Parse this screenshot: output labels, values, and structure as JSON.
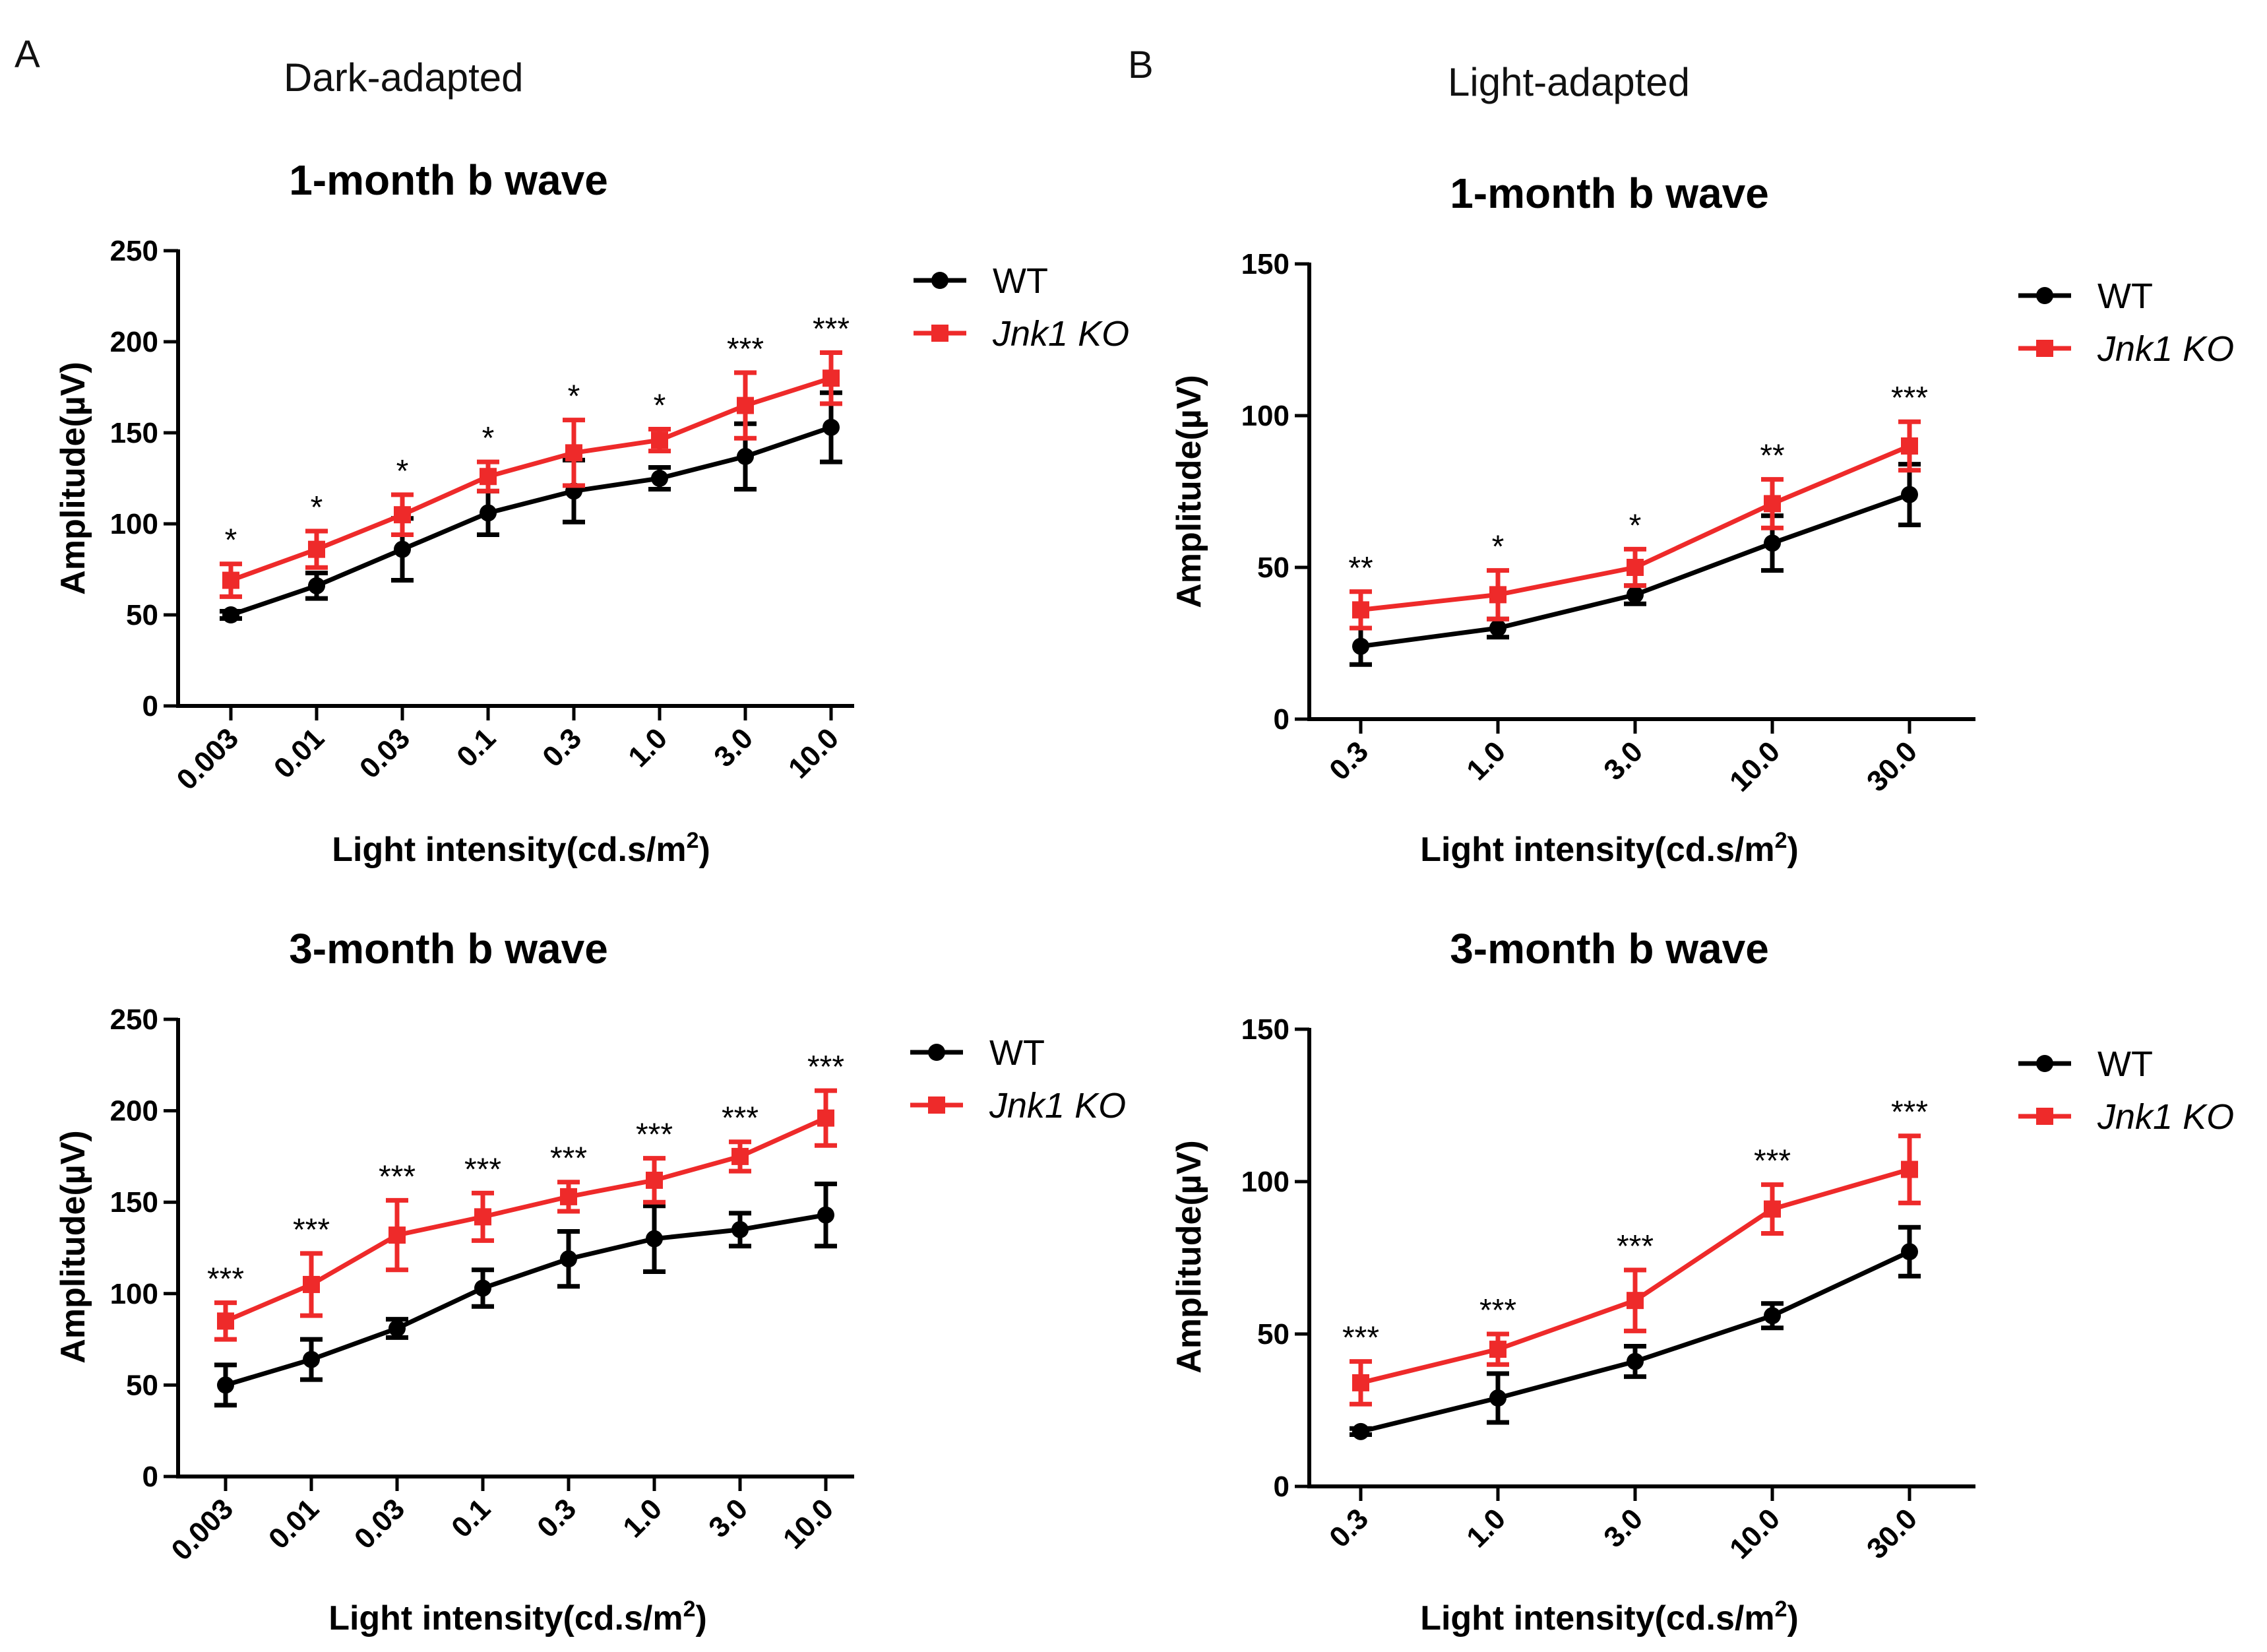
{
  "panels": [
    {
      "letter": "A",
      "section_title": "Dark-adapted"
    },
    {
      "letter": "B",
      "section_title": "Light-adapted"
    }
  ],
  "colors": {
    "wt": "#000000",
    "ko": "#ee2a2a",
    "axis": "#000000"
  },
  "legend": {
    "wt_label": "WT",
    "ko_label": "Jnk1 KO"
  },
  "chart_data": [
    {
      "id": "dark_1m",
      "type": "line",
      "title": "1-month b wave",
      "xlabel": "Light intensity(cd.s/m",
      "xlabel_sup": "2",
      "xlabel_tail": ")",
      "ylabel": "Amplitude(µV)",
      "categories": [
        "0.003",
        "0.01",
        "0.03",
        "0.1",
        "0.3",
        "1.0",
        "3.0",
        "10.0"
      ],
      "ylim": [
        0,
        250
      ],
      "yticks": [
        0,
        50,
        100,
        150,
        200,
        250
      ],
      "legend_position": "top-right",
      "series": [
        {
          "name": "WT",
          "values": [
            50,
            66,
            86,
            106,
            118,
            125,
            137,
            153
          ],
          "errors": [
            2,
            7,
            17,
            12,
            17,
            6,
            18,
            19
          ]
        },
        {
          "name": "Jnk1 KO",
          "values": [
            69,
            86,
            105,
            126,
            139,
            146,
            165,
            180
          ],
          "errors": [
            9,
            10,
            11,
            8,
            18,
            6,
            18,
            14
          ]
        }
      ],
      "significance": [
        "*",
        "*",
        "*",
        "*",
        "*",
        "*",
        "***",
        "***"
      ]
    },
    {
      "id": "light_1m",
      "type": "line",
      "title": "1-month b wave",
      "xlabel": "Light intensity(cd.s/m",
      "xlabel_sup": "2",
      "xlabel_tail": ")",
      "ylabel": "Amplitude(µV)",
      "categories": [
        "0.3",
        "1.0",
        "3.0",
        "10.0",
        "30.0"
      ],
      "ylim": [
        0,
        150
      ],
      "yticks": [
        0,
        50,
        100,
        150
      ],
      "legend_position": "top-right",
      "series": [
        {
          "name": "WT",
          "values": [
            24,
            30,
            41,
            58,
            74
          ],
          "errors": [
            6,
            3,
            3,
            9,
            10
          ]
        },
        {
          "name": "Jnk1 KO",
          "values": [
            36,
            41,
            50,
            71,
            90
          ],
          "errors": [
            6,
            8,
            6,
            8,
            8
          ]
        }
      ],
      "significance": [
        "**",
        "*",
        "*",
        "**",
        "***"
      ]
    },
    {
      "id": "dark_3m",
      "type": "line",
      "title": "3-month b wave",
      "xlabel": "Light intensity(cd.s/m",
      "xlabel_sup": "2",
      "xlabel_tail": ")",
      "ylabel": "Amplitude(µV)",
      "categories": [
        "0.003",
        "0.01",
        "0.03",
        "0.1",
        "0.3",
        "1.0",
        "3.0",
        "10.0"
      ],
      "ylim": [
        0,
        250
      ],
      "yticks": [
        0,
        50,
        100,
        150,
        200,
        250
      ],
      "legend_position": "top-right",
      "series": [
        {
          "name": "WT",
          "values": [
            50,
            64,
            81,
            103,
            119,
            130,
            135,
            143
          ],
          "errors": [
            11,
            11,
            5,
            10,
            15,
            18,
            9,
            17
          ]
        },
        {
          "name": "Jnk1 KO",
          "values": [
            85,
            105,
            132,
            142,
            153,
            162,
            175,
            196
          ],
          "errors": [
            10,
            17,
            19,
            13,
            8,
            12,
            8,
            15
          ]
        }
      ],
      "significance": [
        "***",
        "***",
        "***",
        "***",
        "***",
        "***",
        "***",
        "***"
      ]
    },
    {
      "id": "light_3m",
      "type": "line",
      "title": "3-month b wave",
      "xlabel": "Light intensity(cd.s/m",
      "xlabel_sup": "2",
      "xlabel_tail": ")",
      "ylabel": "Amplitude(µV)",
      "categories": [
        "0.3",
        "1.0",
        "3.0",
        "10.0",
        "30.0"
      ],
      "ylim": [
        0,
        150
      ],
      "yticks": [
        0,
        50,
        100,
        150
      ],
      "legend_position": "top-right",
      "series": [
        {
          "name": "WT",
          "values": [
            18,
            29,
            41,
            56,
            77
          ],
          "errors": [
            1,
            8,
            5,
            4,
            8
          ]
        },
        {
          "name": "Jnk1 KO",
          "values": [
            34,
            45,
            61,
            91,
            104
          ],
          "errors": [
            7,
            5,
            10,
            8,
            11
          ]
        }
      ],
      "significance": [
        "***",
        "***",
        "***",
        "***",
        "***"
      ]
    }
  ]
}
